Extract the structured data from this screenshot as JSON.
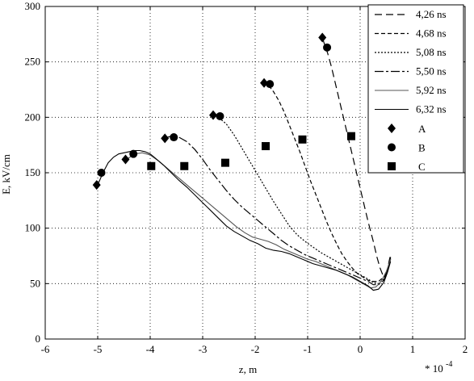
{
  "chart_data": {
    "type": "line",
    "title": "",
    "xlabel": "z, m",
    "ylabel": "E, kV/cm",
    "x_multiplier_label": "* 10",
    "x_multiplier_exponent": "-4",
    "xlim": [
      -6,
      2
    ],
    "ylim": [
      0,
      300
    ],
    "xticks": [
      "-6",
      "-5",
      "-4",
      "-3",
      "-2",
      "-1",
      "0",
      "1",
      "2"
    ],
    "yticks": [
      "0",
      "50",
      "100",
      "150",
      "200",
      "250",
      "300"
    ],
    "grid": true,
    "legend_position": "top-right",
    "series": [
      {
        "name": "4,26 ns",
        "dash": "long-dash",
        "color": "#000000",
        "x": [
          -0.72,
          -0.68,
          -0.62,
          -0.55,
          -0.45,
          -0.35,
          -0.25,
          -0.15,
          -0.05,
          0.05,
          0.15,
          0.25,
          0.32,
          0.38,
          0.43,
          0.48,
          0.52,
          0.55,
          0.58
        ],
        "y": [
          272,
          266,
          258,
          246,
          226,
          206,
          186,
          166,
          146,
          126,
          106,
          88,
          74,
          64,
          58,
          57,
          62,
          70,
          76
        ]
      },
      {
        "name": "4,68 ns",
        "dash": "dash",
        "color": "#000000",
        "x": [
          -1.85,
          -1.75,
          -1.65,
          -1.55,
          -1.45,
          -1.35,
          -1.25,
          -1.15,
          -1.05,
          -0.95,
          -0.85,
          -0.75,
          -0.65,
          -0.55,
          -0.45,
          -0.35,
          -0.25,
          -0.15,
          -0.05,
          0.05,
          0.15,
          0.25,
          0.35,
          0.45,
          0.52,
          0.58
        ],
        "y": [
          231,
          229,
          223,
          215,
          205,
          193,
          181,
          169,
          156,
          143,
          131,
          119,
          107,
          96,
          86,
          77,
          70,
          64,
          59,
          56,
          53,
          52,
          52,
          56,
          62,
          74
        ]
      },
      {
        "name": "5,08 ns",
        "dash": "dot",
        "color": "#000000",
        "x": [
          -2.8,
          -2.7,
          -2.55,
          -2.4,
          -2.25,
          -2.1,
          -1.95,
          -1.8,
          -1.65,
          -1.5,
          -1.35,
          -1.2,
          -1.05,
          -0.9,
          -0.75,
          -0.6,
          -0.45,
          -0.3,
          -0.15,
          0.0,
          0.15,
          0.25,
          0.35,
          0.45,
          0.52,
          0.58
        ],
        "y": [
          202,
          200,
          194,
          184,
          172,
          160,
          148,
          136,
          124,
          113,
          102,
          94,
          88,
          83,
          78,
          74,
          70,
          66,
          62,
          58,
          54,
          51,
          50,
          54,
          62,
          73
        ]
      },
      {
        "name": "5,50 ns",
        "dash": "long-dash-short",
        "color": "#000000",
        "x": [
          -3.75,
          -3.6,
          -3.45,
          -3.3,
          -3.15,
          -3.0,
          -2.85,
          -2.7,
          -2.55,
          -2.4,
          -2.25,
          -2.1,
          -1.95,
          -1.8,
          -1.65,
          -1.5,
          -1.35,
          -1.2,
          -1.05,
          -0.9,
          -0.75,
          -0.6,
          -0.45,
          -0.3,
          -0.15,
          0.0,
          0.15,
          0.25,
          0.35,
          0.45,
          0.52,
          0.58
        ],
        "y": [
          181,
          183,
          182,
          178,
          171,
          162,
          152,
          143,
          134,
          126,
          119,
          113,
          107,
          101,
          95,
          89,
          84,
          80,
          76,
          73,
          70,
          67,
          64,
          61,
          58,
          55,
          52,
          49,
          49,
          53,
          62,
          72
        ]
      },
      {
        "name": "5,92 ns",
        "dash": "solid-gray",
        "color": "#555555",
        "x": [
          -4.45,
          -4.3,
          -4.15,
          -4.0,
          -3.85,
          -3.7,
          -3.55,
          -3.4,
          -3.25,
          -3.1,
          -2.95,
          -2.8,
          -2.65,
          -2.5,
          -2.35,
          -2.2,
          -2.05,
          -1.9,
          -1.75,
          -1.6,
          -1.45,
          -1.3,
          -1.15,
          -1.0,
          -0.85,
          -0.7,
          -0.55,
          -0.4,
          -0.25,
          -0.1,
          0.05,
          0.2,
          0.3,
          0.4,
          0.5,
          0.58
        ],
        "y": [
          162,
          167,
          168,
          166,
          161,
          155,
          149,
          143,
          137,
          131,
          125,
          119,
          113,
          107,
          101,
          96,
          92,
          90,
          88,
          85,
          81,
          78,
          75,
          72,
          70,
          67,
          64,
          61,
          58,
          54,
          50,
          46,
          47,
          52,
          61,
          72
        ]
      },
      {
        "name": "6,32 ns",
        "dash": "solid",
        "color": "#000000",
        "x": [
          -5.0,
          -4.9,
          -4.8,
          -4.7,
          -4.6,
          -4.5,
          -4.4,
          -4.3,
          -4.2,
          -4.1,
          -4.0,
          -3.9,
          -3.75,
          -3.6,
          -3.45,
          -3.3,
          -3.15,
          -3.0,
          -2.85,
          -2.7,
          -2.55,
          -2.4,
          -2.25,
          -2.1,
          -1.95,
          -1.8,
          -1.65,
          -1.5,
          -1.35,
          -1.2,
          -1.05,
          -0.9,
          -0.75,
          -0.6,
          -0.45,
          -0.3,
          -0.15,
          0.0,
          0.15,
          0.25,
          0.35,
          0.45,
          0.52,
          0.58
        ],
        "y": [
          139,
          150,
          159,
          164,
          167,
          168,
          169,
          170,
          170,
          169,
          167,
          163,
          157,
          150,
          143,
          137,
          130,
          123,
          116,
          109,
          102,
          97,
          93,
          89,
          86,
          82,
          80,
          79,
          77,
          74,
          71,
          68,
          66,
          64,
          62,
          59,
          56,
          52,
          48,
          44,
          45,
          51,
          60,
          70
        ]
      }
    ],
    "markers": [
      {
        "name": "A",
        "shape": "diamond",
        "points": [
          [
            -5.02,
            139
          ],
          [
            -4.47,
            162
          ],
          [
            -3.72,
            181
          ],
          [
            -2.8,
            202
          ],
          [
            -1.83,
            231
          ],
          [
            -0.72,
            272
          ]
        ]
      },
      {
        "name": "B",
        "shape": "circle",
        "points": [
          [
            -4.93,
            150
          ],
          [
            -4.32,
            167
          ],
          [
            -3.55,
            182
          ],
          [
            -2.67,
            201
          ],
          [
            -1.72,
            230
          ],
          [
            -0.63,
            263
          ]
        ]
      },
      {
        "name": "C",
        "shape": "square",
        "points": [
          [
            -3.98,
            156
          ],
          [
            -3.35,
            156
          ],
          [
            -2.57,
            159
          ],
          [
            -1.8,
            174
          ],
          [
            -1.1,
            180
          ],
          [
            -0.17,
            183
          ]
        ]
      }
    ]
  }
}
